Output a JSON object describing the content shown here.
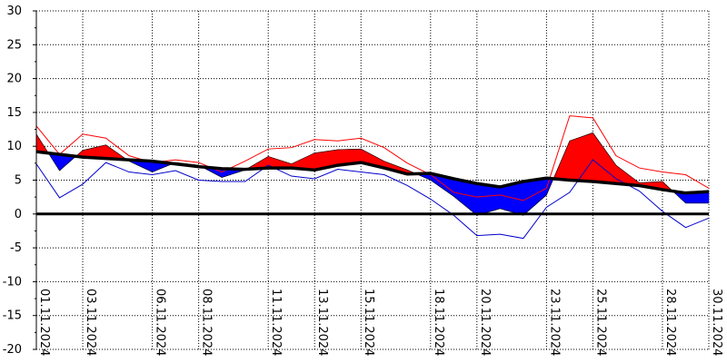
{
  "chart_data": {
    "type": "area",
    "title": "",
    "xlabel": "",
    "ylabel": "",
    "ylim": [
      -20,
      30
    ],
    "yticks": [
      30,
      25,
      20,
      15,
      10,
      5,
      0,
      -5,
      -10,
      -15,
      -20
    ],
    "grid": true,
    "x_start": "01.11.2024",
    "x_end": "30.11.2024",
    "xtick_labels": [
      "01.11.2024",
      "03.11.2024",
      "06.11.2024",
      "08.11.2024",
      "11.11.2024",
      "13.11.2024",
      "15.11.2024",
      "18.11.2024",
      "20.11.2024",
      "23.11.2024",
      "25.11.2024",
      "28.11.2024",
      "30.11.2024"
    ],
    "xtick_positions": [
      0,
      2,
      5,
      7,
      10,
      12,
      14,
      17,
      19,
      22,
      24,
      27,
      29
    ],
    "series": [
      {
        "color": "#000000",
        "values": [
          9.2,
          8.8,
          8.4,
          8.2,
          8.0,
          7.8,
          7.4,
          7.0,
          6.7,
          6.6,
          6.8,
          6.8,
          6.5,
          7.2,
          7.6,
          6.8,
          5.9,
          6.0,
          5.2,
          4.5,
          4.0,
          4.8,
          5.3,
          5.0,
          4.8,
          4.5,
          4.2,
          3.6,
          3.1,
          3.3
        ]
      },
      {
        "color": "#ff0000",
        "values": [
          11.8,
          6.4,
          9.4,
          10.2,
          7.8,
          6.2,
          7.6,
          7.2,
          5.4,
          6.5,
          8.5,
          7.4,
          9.0,
          9.5,
          9.6,
          7.8,
          6.5,
          5.0,
          2.6,
          -0.2,
          0.8,
          -0.2,
          2.8,
          10.8,
          12.0,
          7.2,
          4.6,
          4.8,
          1.6,
          1.6
        ]
      },
      {
        "color": "#ff0000",
        "values": [
          13.0,
          8.8,
          11.8,
          11.2,
          8.6,
          7.6,
          8.0,
          7.6,
          6.2,
          7.8,
          9.6,
          9.8,
          11.0,
          10.8,
          11.2,
          9.8,
          7.5,
          5.8,
          3.2,
          2.5,
          2.8,
          2.0,
          3.8,
          14.5,
          14.2,
          8.6,
          6.8,
          6.2,
          5.8,
          3.8
        ]
      },
      {
        "color": "#0000cc",
        "values": [
          7.4,
          2.4,
          4.4,
          7.6,
          6.2,
          5.8,
          6.4,
          5.0,
          4.8,
          4.8,
          7.2,
          5.6,
          5.2,
          6.6,
          6.2,
          5.8,
          4.2,
          2.2,
          -0.2,
          -3.2,
          -3.0,
          -3.6,
          1.0,
          3.2,
          8.0,
          5.2,
          3.4,
          0.4,
          -2.0,
          -0.6
        ]
      }
    ]
  }
}
